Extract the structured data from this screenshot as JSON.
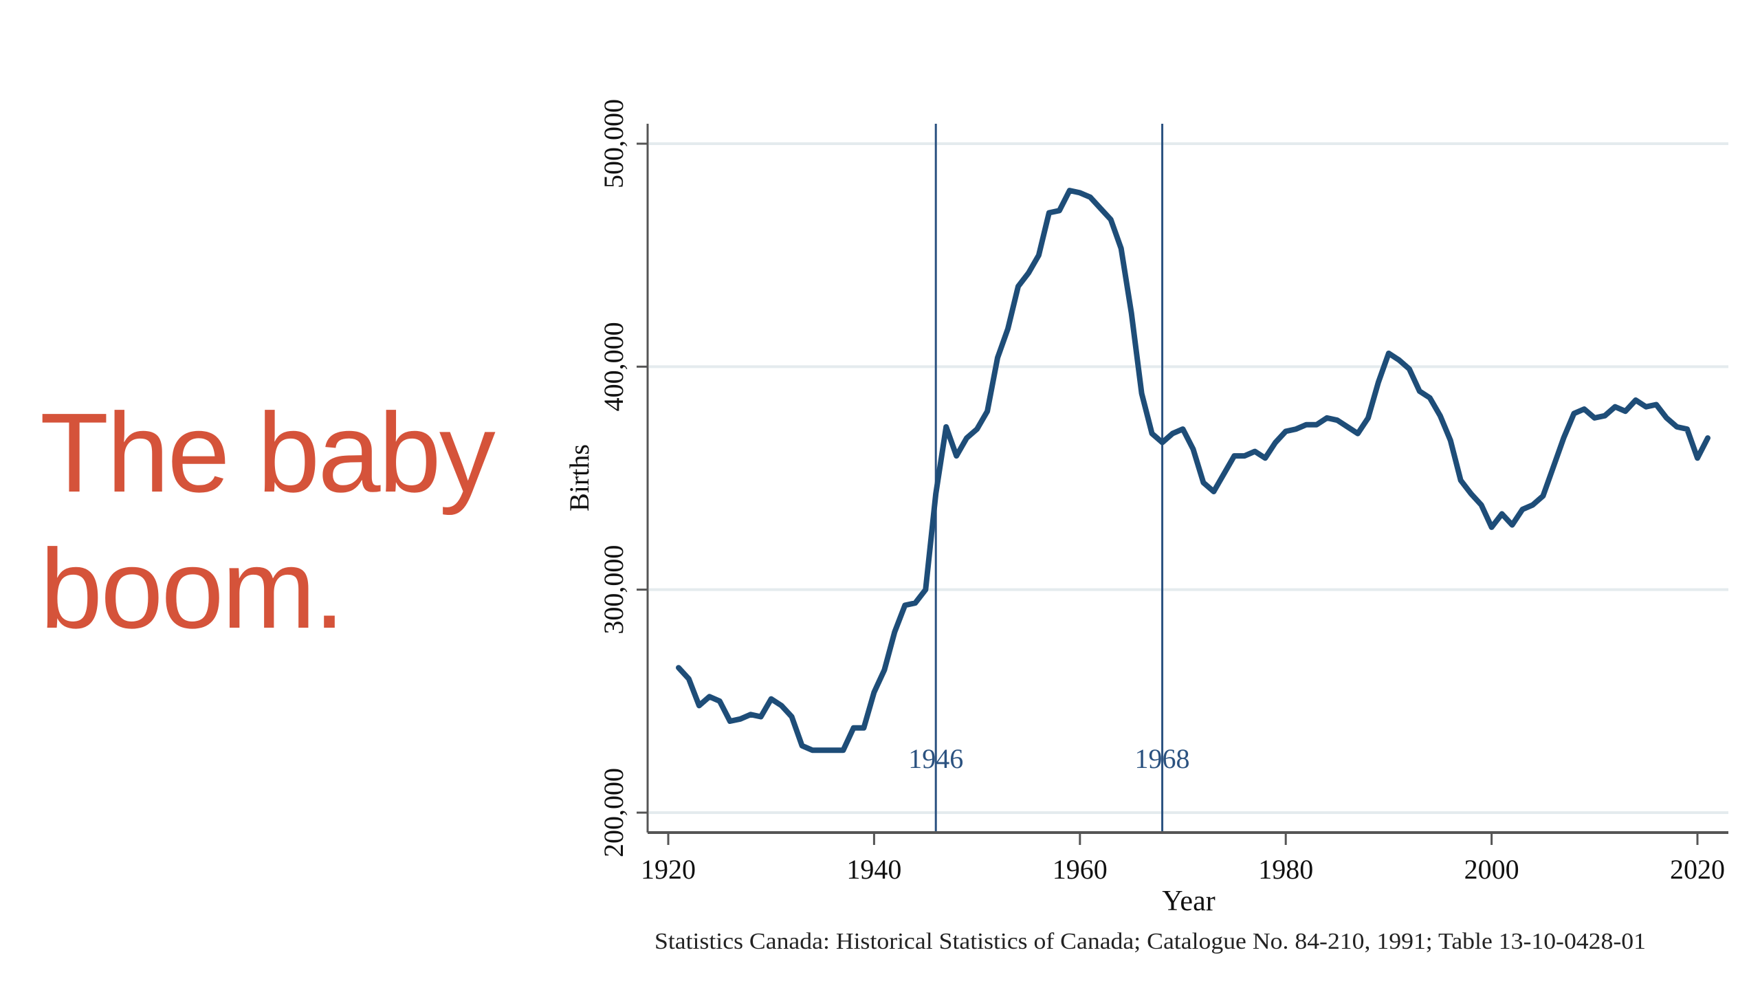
{
  "slide": {
    "title_lines": [
      "The baby",
      "boom."
    ],
    "title_color": "#D5533A"
  },
  "chart_data": {
    "type": "line",
    "title": "",
    "xlabel": "Year",
    "ylabel": "Births",
    "source": "Statistics Canada: Historical Statistics of Canada; Catalogue No. 84-210, 1991; Table 13-10-0428-01",
    "xlim": [
      1917,
      2023
    ],
    "ylim": [
      190000,
      510000
    ],
    "x_ticks": [
      1920,
      1940,
      1960,
      1980,
      2000,
      2020
    ],
    "x_tick_labels": [
      "1920",
      "1940",
      "1960",
      "1980",
      "2000",
      "2020"
    ],
    "y_ticks": [
      200000,
      300000,
      400000,
      500000
    ],
    "y_tick_labels": [
      "200,000",
      "300,000",
      "400,000",
      "500,000"
    ],
    "grid": "horizontal",
    "line_color": "#1E4D78",
    "reference_lines": [
      {
        "x": 1946,
        "label": "1946"
      },
      {
        "x": 1968,
        "label": "1968"
      }
    ],
    "reference_color": "#2B5280",
    "series": [
      {
        "name": "Births",
        "x": [
          1921,
          1922,
          1923,
          1924,
          1925,
          1926,
          1927,
          1928,
          1929,
          1930,
          1931,
          1932,
          1933,
          1934,
          1935,
          1936,
          1937,
          1938,
          1939,
          1940,
          1941,
          1942,
          1943,
          1944,
          1945,
          1946,
          1947,
          1948,
          1949,
          1950,
          1951,
          1952,
          1953,
          1954,
          1955,
          1956,
          1957,
          1958,
          1959,
          1960,
          1961,
          1962,
          1963,
          1964,
          1965,
          1966,
          1967,
          1968,
          1969,
          1970,
          1971,
          1972,
          1973,
          1974,
          1975,
          1976,
          1977,
          1978,
          1979,
          1980,
          1981,
          1982,
          1983,
          1984,
          1985,
          1986,
          1987,
          1988,
          1989,
          1990,
          1991,
          1992,
          1993,
          1994,
          1995,
          1996,
          1997,
          1998,
          1999,
          2000,
          2001,
          2002,
          2003,
          2004,
          2005,
          2006,
          2007,
          2008,
          2009,
          2010,
          2011,
          2012,
          2013,
          2014,
          2015,
          2016,
          2017,
          2018,
          2019,
          2020,
          2021
        ],
        "values": [
          265000,
          260000,
          248000,
          252000,
          250000,
          241000,
          242000,
          244000,
          243000,
          251000,
          248000,
          243000,
          230000,
          228000,
          228000,
          228000,
          228000,
          238000,
          238000,
          254000,
          264000,
          281000,
          293000,
          294000,
          300000,
          343000,
          373000,
          360000,
          368000,
          372000,
          380000,
          404000,
          417000,
          436000,
          442000,
          450000,
          469000,
          470000,
          479000,
          478000,
          476000,
          471000,
          466000,
          453000,
          424000,
          388000,
          370000,
          366000,
          370000,
          372000,
          363000,
          348000,
          344000,
          352000,
          360000,
          360000,
          362000,
          359000,
          366000,
          371000,
          372000,
          374000,
          374000,
          377000,
          376000,
          373000,
          370000,
          377000,
          393000,
          406000,
          403000,
          399000,
          389000,
          386000,
          378000,
          367000,
          349000,
          343000,
          338000,
          328000,
          334000,
          329000,
          336000,
          338000,
          342000,
          355000,
          368000,
          379000,
          381000,
          377000,
          378000,
          382000,
          380000,
          385000,
          382000,
          383000,
          377000,
          373000,
          372000,
          359000,
          368000
        ]
      }
    ]
  }
}
